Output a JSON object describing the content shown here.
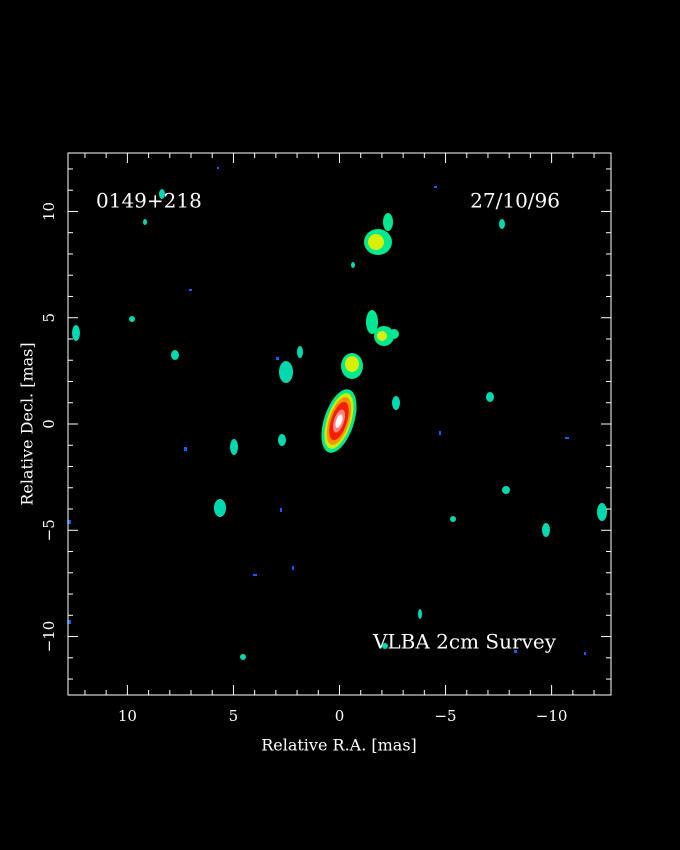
{
  "chart_data": {
    "type": "image",
    "annotations": [
      "0149+218",
      "27/10/96",
      "VLBA 2cm Survey"
    ],
    "xlabel": "Relative R.A. [mas]",
    "ylabel": "Relative Decl. [mas]",
    "xlim": [
      12.8,
      -12.8
    ],
    "ylim": [
      -12.75,
      12.75
    ],
    "xticks": [
      10,
      5,
      0,
      {
        "value": -5,
        "label": "−5"
      },
      {
        "value": -10,
        "label": "−10"
      }
    ],
    "yticks": [
      {
        "value": -10,
        "label": "−10"
      },
      {
        "value": -5,
        "label": "−5"
      },
      0,
      5,
      10
    ],
    "xminorticks": [
      12,
      11,
      9,
      8,
      7,
      6,
      4,
      3,
      2,
      1,
      -1,
      -2,
      -3,
      -4,
      -6,
      -7,
      -8,
      -9,
      -11,
      -12
    ],
    "yminorticks": [
      -12,
      -11,
      -9,
      -8,
      -7,
      -6,
      -4,
      -3,
      -2,
      -1,
      1,
      2,
      3,
      4,
      6,
      7,
      8,
      9,
      11,
      12
    ]
  }
}
